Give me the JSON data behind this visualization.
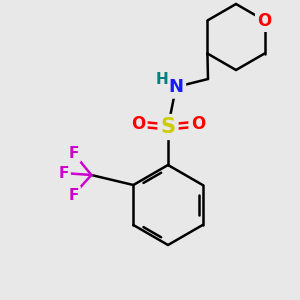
{
  "background_color": "#e8e8e8",
  "bond_color": "#000000",
  "bond_width": 1.8,
  "atom_colors": {
    "O": "#ff0000",
    "N": "#1a1aff",
    "S": "#cccc00",
    "F": "#cc00cc",
    "H_on_N": "#008080",
    "C": "#000000"
  }
}
